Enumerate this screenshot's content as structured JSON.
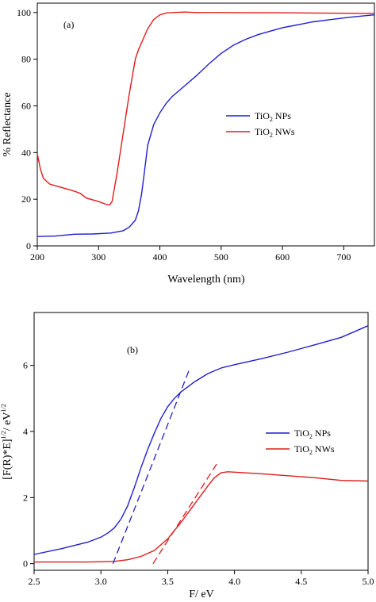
{
  "chart_data": [
    {
      "type": "line",
      "panel_label": "(a)",
      "xlabel": "Wavelength (nm)",
      "ylabel": "% Reflectance",
      "xlim": [
        200,
        750
      ],
      "ylim": [
        0,
        104
      ],
      "xticks": [
        200,
        300,
        400,
        500,
        600,
        700
      ],
      "yticks": [
        0,
        20,
        40,
        60,
        80,
        100
      ],
      "grid": false,
      "legend_position": "middle-right",
      "series": [
        {
          "name_main": "TiO",
          "name_sub": "2",
          "name_rest": " NPs",
          "color": "#1f1fd1",
          "dash": "solid",
          "x": [
            200,
            230,
            260,
            290,
            320,
            340,
            350,
            360,
            365,
            370,
            375,
            380,
            390,
            400,
            410,
            420,
            440,
            460,
            480,
            500,
            520,
            540,
            560,
            580,
            600,
            620,
            650,
            680,
            710,
            750
          ],
          "y": [
            4,
            4.2,
            5,
            5.1,
            5.5,
            6.5,
            8,
            11,
            15,
            22,
            32,
            43,
            52,
            57,
            61,
            64,
            68.5,
            73,
            78,
            82.5,
            86,
            88.5,
            90.5,
            92,
            93.5,
            94.5,
            96,
            97,
            98,
            99
          ]
        },
        {
          "name_main": "TiO",
          "name_sub": "2",
          "name_rest": " NWs",
          "color": "#e01b1b",
          "dash": "solid",
          "x": [
            200,
            205,
            210,
            220,
            240,
            260,
            270,
            280,
            300,
            310,
            318,
            322,
            330,
            340,
            350,
            360,
            365,
            370,
            380,
            390,
            400,
            410,
            420,
            440,
            460,
            500,
            550,
            600,
            650,
            700,
            750
          ],
          "y": [
            39.5,
            33,
            29,
            26.5,
            25,
            23.5,
            22.5,
            20.5,
            19,
            18,
            17.5,
            19,
            31,
            48,
            65,
            80,
            84,
            87,
            93,
            97,
            99,
            99.8,
            100,
            100.2,
            100,
            100,
            99.9,
            99.9,
            99.8,
            99.7,
            99.6
          ]
        }
      ]
    },
    {
      "type": "line",
      "panel_label": "(b)",
      "xlabel": "F/ eV",
      "ylabel_main": "[F(R)*E]",
      "ylabel_sup1": "1/2",
      "ylabel_mid": "/ eV",
      "ylabel_sup2": "1/2",
      "xlim": [
        2.5,
        5.0
      ],
      "ylim": [
        -0.2,
        7.6
      ],
      "xticks": [
        2.5,
        3.0,
        3.5,
        4.0,
        4.5,
        5.0
      ],
      "yticks": [
        0,
        2,
        4,
        6
      ],
      "grid": false,
      "legend_position": "middle-right",
      "series": [
        {
          "name_main": "TiO",
          "name_sub": "2",
          "name_rest": " NPs",
          "color": "#1f1fd1",
          "dash": "solid",
          "x": [
            2.5,
            2.7,
            2.9,
            3.0,
            3.05,
            3.1,
            3.15,
            3.2,
            3.25,
            3.3,
            3.35,
            3.4,
            3.45,
            3.5,
            3.55,
            3.6,
            3.65,
            3.7,
            3.8,
            3.9,
            4.0,
            4.2,
            4.4,
            4.6,
            4.8,
            5.0
          ],
          "y": [
            0.28,
            0.45,
            0.65,
            0.8,
            0.92,
            1.08,
            1.35,
            1.75,
            2.3,
            2.9,
            3.45,
            3.95,
            4.4,
            4.75,
            5.0,
            5.2,
            5.35,
            5.5,
            5.75,
            5.92,
            6.02,
            6.2,
            6.4,
            6.62,
            6.85,
            7.2
          ]
        },
        {
          "name_main": "TiO",
          "name_sub": "2",
          "name_rest": " NWs",
          "color": "#e01b1b",
          "dash": "solid",
          "x": [
            2.5,
            2.9,
            3.1,
            3.2,
            3.3,
            3.4,
            3.5,
            3.6,
            3.7,
            3.8,
            3.85,
            3.9,
            3.95,
            4.0,
            4.2,
            4.4,
            4.6,
            4.8,
            5.0
          ],
          "y": [
            0.05,
            0.05,
            0.07,
            0.12,
            0.22,
            0.4,
            0.75,
            1.25,
            1.8,
            2.35,
            2.6,
            2.75,
            2.78,
            2.77,
            2.72,
            2.66,
            2.6,
            2.52,
            2.5
          ]
        },
        {
          "name": "",
          "role": "fit",
          "color": "#1f1fd1",
          "dash": "dashed",
          "x": [
            3.09,
            3.66
          ],
          "y": [
            0.0,
            5.85
          ]
        },
        {
          "name": "",
          "role": "fit",
          "color": "#e01b1b",
          "dash": "dashed",
          "x": [
            3.39,
            3.88
          ],
          "y": [
            0.0,
            3.1
          ]
        }
      ]
    }
  ]
}
